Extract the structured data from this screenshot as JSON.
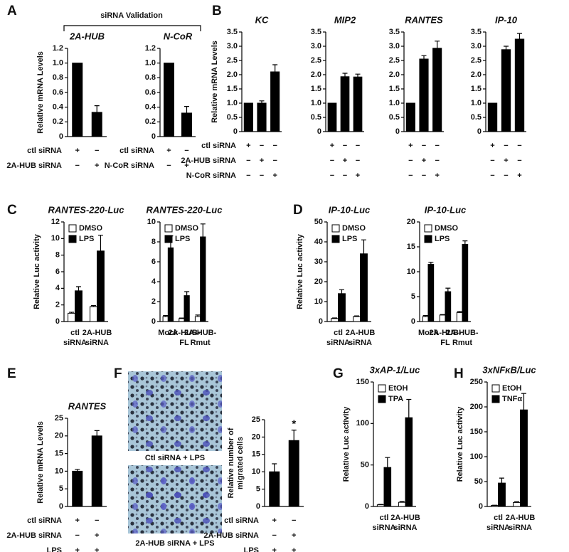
{
  "panel_letters": [
    "A",
    "B",
    "C",
    "D",
    "E",
    "F",
    "G",
    "H"
  ],
  "header": "siRNA Validation",
  "image_captions": [
    "Ctl siRNA + LPS",
    "2A-HUB siRNA + LPS"
  ],
  "chart_data": [
    {
      "type": "bar",
      "title": "2A-HUB",
      "ylabel": "Relative mRNA Levels",
      "ylim": [
        0,
        1.2
      ],
      "yticks": [
        0,
        0.2,
        0.4,
        0.6,
        0.8,
        {
          "value": 1,
          "label": "1.0"
        },
        1.2
      ],
      "series": [
        {
          "color": "#000000",
          "values": [
            1.0,
            0.33
          ],
          "errors": [
            0,
            0.09
          ]
        }
      ],
      "conditions": [
        {
          "label": "ctl siRNA",
          "signs": [
            "+",
            "−"
          ]
        },
        {
          "label": "2A-HUB siRNA",
          "signs": [
            "−",
            "+"
          ]
        }
      ]
    },
    {
      "type": "bar",
      "title": "N-CoR",
      "ylim": [
        0,
        1.2
      ],
      "yticks": [
        0,
        0.2,
        0.4,
        0.6,
        0.8,
        {
          "value": 1,
          "label": "1.0"
        },
        1.2
      ],
      "series": [
        {
          "color": "#000000",
          "values": [
            1.0,
            0.32
          ],
          "errors": [
            0,
            0.09
          ]
        }
      ],
      "conditions": [
        {
          "label": "ctl siRNA",
          "signs": [
            "+",
            "−"
          ]
        },
        {
          "label": "N-CoR siRNA",
          "signs": [
            "−",
            "+"
          ]
        }
      ]
    },
    {
      "type": "bar",
      "title": "KC",
      "ylabel": "Relative mRNA Levels",
      "ylim": [
        0,
        3.5
      ],
      "yticks": [
        0,
        0.5,
        {
          "value": 1,
          "label": "1.0"
        },
        1.5,
        {
          "value": 2,
          "label": "2.0"
        },
        2.5,
        {
          "value": 3,
          "label": "3.0"
        },
        3.5
      ],
      "series": [
        {
          "color": "#000000",
          "values": [
            1.0,
            1.0,
            2.1
          ],
          "errors": [
            0,
            0.08,
            0.25
          ]
        }
      ],
      "conditions": [
        {
          "label": "ctl siRNA",
          "signs": [
            "+",
            "−",
            "−"
          ]
        },
        {
          "label": "2A-HUB siRNA",
          "signs": [
            "−",
            "+",
            "−"
          ]
        },
        {
          "label": "N-CoR siRNA",
          "signs": [
            "−",
            "−",
            "+"
          ]
        }
      ]
    },
    {
      "type": "bar",
      "title": "MIP2",
      "ylim": [
        0,
        3.5
      ],
      "yticks": [
        0,
        0.5,
        {
          "value": 1,
          "label": "1.0"
        },
        1.5,
        {
          "value": 2,
          "label": "2.0"
        },
        2.5,
        {
          "value": 3,
          "label": "3.0"
        },
        3.5
      ],
      "series": [
        {
          "color": "#000000",
          "values": [
            1.0,
            1.93,
            1.92
          ],
          "errors": [
            0,
            0.12,
            0.1
          ]
        }
      ],
      "conditions": [
        {
          "signs": [
            "+",
            "−",
            "−"
          ]
        },
        {
          "signs": [
            "−",
            "+",
            "−"
          ]
        },
        {
          "signs": [
            "−",
            "−",
            "+"
          ]
        }
      ]
    },
    {
      "type": "bar",
      "title": "RANTES",
      "ylim": [
        0,
        3.5
      ],
      "yticks": [
        0,
        0.5,
        {
          "value": 1,
          "label": "1.0"
        },
        1.5,
        {
          "value": 2,
          "label": "2.0"
        },
        2.5,
        {
          "value": 3,
          "label": "3.0"
        },
        3.5
      ],
      "series": [
        {
          "color": "#000000",
          "values": [
            1.0,
            2.55,
            2.93
          ],
          "errors": [
            0,
            0.12,
            0.25
          ]
        }
      ],
      "conditions": [
        {
          "signs": [
            "+",
            "−",
            "−"
          ]
        },
        {
          "signs": [
            "−",
            "+",
            "−"
          ]
        },
        {
          "signs": [
            "−",
            "−",
            "+"
          ]
        }
      ]
    },
    {
      "type": "bar",
      "title": "IP-10",
      "ylim": [
        0,
        3.5
      ],
      "yticks": [
        0,
        0.5,
        {
          "value": 1,
          "label": "1.0"
        },
        1.5,
        {
          "value": 2,
          "label": "2.0"
        },
        2.5,
        {
          "value": 3,
          "label": "3.0"
        },
        3.5
      ],
      "series": [
        {
          "color": "#000000",
          "values": [
            1.0,
            2.88,
            3.25
          ],
          "errors": [
            0,
            0.12,
            0.2
          ]
        }
      ],
      "conditions": [
        {
          "signs": [
            "+",
            "−",
            "−"
          ]
        },
        {
          "signs": [
            "−",
            "+",
            "−"
          ]
        },
        {
          "signs": [
            "−",
            "−",
            "+"
          ]
        }
      ]
    },
    {
      "type": "bar",
      "title": "RANTES-220-Luc",
      "ylabel": "Relative Luc activity",
      "ylim": [
        0,
        12
      ],
      "yticks": [
        0,
        2,
        4,
        6,
        8,
        10,
        12
      ],
      "legend": "upper left",
      "categories": [
        [
          "ctl",
          "siRNA"
        ],
        [
          "2A-HUB",
          "siRNA"
        ]
      ],
      "series": [
        {
          "name": "DMSO",
          "color": "#ffffff",
          "values": [
            1.0,
            1.8
          ],
          "errors": [
            0.12,
            0.12
          ]
        },
        {
          "name": "LPS",
          "color": "#000000",
          "values": [
            3.7,
            8.5
          ],
          "errors": [
            0.5,
            1.9
          ]
        }
      ]
    },
    {
      "type": "bar",
      "title": "RANTES-220-Luc",
      "ylim": [
        0,
        10
      ],
      "yticks": [
        0,
        2,
        4,
        6,
        8,
        10
      ],
      "legend": "upper left",
      "categories": [
        [
          "Mock"
        ],
        [
          "2A-HUB-",
          "FL"
        ],
        [
          "2A-HUB-",
          "Rmut"
        ]
      ],
      "series": [
        {
          "name": "DMSO",
          "color": "#ffffff",
          "values": [
            0.5,
            0.3,
            0.5
          ],
          "errors": [
            0.1,
            0.05,
            0.15
          ]
        },
        {
          "name": "LPS",
          "color": "#000000",
          "values": [
            7.4,
            2.6,
            8.5
          ],
          "errors": [
            1.2,
            0.4,
            1.3
          ]
        }
      ]
    },
    {
      "type": "bar",
      "title": "IP-10-Luc",
      "ylabel": "Relative Luc activity",
      "ylim": [
        0,
        50
      ],
      "yticks": [
        0,
        10,
        20,
        30,
        40,
        50
      ],
      "legend": "upper left",
      "categories": [
        [
          "ctl",
          "siRNA"
        ],
        [
          "2A-HUB",
          "siRNA"
        ]
      ],
      "series": [
        {
          "name": "DMSO",
          "color": "#ffffff",
          "values": [
            1.5,
            2.5
          ],
          "errors": [
            0.3,
            0.3
          ]
        },
        {
          "name": "LPS",
          "color": "#000000",
          "values": [
            14,
            34
          ],
          "errors": [
            2,
            7
          ]
        }
      ]
    },
    {
      "type": "bar",
      "title": "IP-10-Luc",
      "ylim": [
        0,
        20
      ],
      "yticks": [
        0,
        5,
        10,
        15,
        20
      ],
      "legend": "upper left",
      "categories": [
        [
          "Mock"
        ],
        [
          "2A-HUB-",
          "FL"
        ],
        [
          "2A-HUB-",
          "Rmut"
        ]
      ],
      "series": [
        {
          "name": "DMSO",
          "color": "#ffffff",
          "values": [
            1.0,
            1.3,
            1.8
          ],
          "errors": [
            0.2,
            0.1,
            0.2
          ]
        },
        {
          "name": "LPS",
          "color": "#000000",
          "values": [
            11.5,
            6,
            15.5
          ],
          "errors": [
            0.4,
            0.7,
            0.7
          ]
        }
      ]
    },
    {
      "type": "bar",
      "title": "RANTES",
      "ylabel": "Relative mRNA Levels",
      "ylim": [
        0,
        25
      ],
      "yticks": [
        0,
        5,
        10,
        15,
        20,
        25
      ],
      "series": [
        {
          "color": "#000000",
          "values": [
            10,
            20
          ],
          "errors": [
            0.5,
            1.5
          ]
        }
      ],
      "conditions": [
        {
          "label": "ctl siRNA",
          "signs": [
            "+",
            "−"
          ]
        },
        {
          "label": "2A-HUB siRNA",
          "signs": [
            "−",
            "+"
          ]
        },
        {
          "label": "LPS",
          "signs": [
            "+",
            "+"
          ]
        }
      ]
    },
    {
      "type": "bar",
      "ylabel": [
        "Relative number of",
        "migrated cells"
      ],
      "ylim": [
        0,
        25
      ],
      "yticks": [
        0,
        5,
        10,
        15,
        20,
        25
      ],
      "annotation": "*",
      "series": [
        {
          "color": "#000000",
          "values": [
            10,
            19
          ],
          "errors": [
            2.3,
            3
          ]
        }
      ],
      "conditions": [
        {
          "label": "ctl siRNA",
          "signs": [
            "+",
            "−"
          ]
        },
        {
          "label": "2A-HUB siRNA",
          "signs": [
            "−",
            "+"
          ]
        },
        {
          "label": "LPS",
          "signs": [
            "+",
            "+"
          ]
        }
      ]
    },
    {
      "type": "bar",
      "title": "3xAP-1/Luc",
      "ylabel": "Relative Luc activity",
      "ylim": [
        0,
        150
      ],
      "yticks": [
        0,
        50,
        100,
        150
      ],
      "legend": "upper left",
      "categories": [
        [
          "ctl",
          "siRNA"
        ],
        [
          "2A-HUB",
          "siRNA"
        ]
      ],
      "series": [
        {
          "name": "EtOH",
          "color": "#ffffff",
          "values": [
            2,
            5
          ],
          "errors": [
            0.5,
            1
          ]
        },
        {
          "name": "TPA",
          "color": "#000000",
          "values": [
            47,
            107
          ],
          "errors": [
            12,
            22
          ]
        }
      ]
    },
    {
      "type": "bar",
      "title": "3xNFκB/Luc",
      "ylabel": "Relative Luc activity",
      "ylim": [
        0,
        250
      ],
      "yticks": [
        0,
        50,
        100,
        150,
        200,
        250
      ],
      "legend": "upper left",
      "categories": [
        [
          "ctl",
          "siRNA"
        ],
        [
          "2A-HUB",
          "siRNA"
        ]
      ],
      "series": [
        {
          "name": "EtOH",
          "color": "#ffffff",
          "values": [
            2,
            8
          ],
          "errors": [
            0.5,
            1.5
          ]
        },
        {
          "name": "TNFα",
          "color": "#000000",
          "values": [
            47,
            194
          ],
          "errors": [
            10,
            33
          ]
        }
      ]
    }
  ]
}
